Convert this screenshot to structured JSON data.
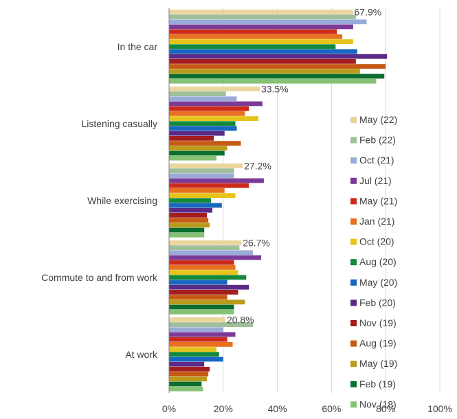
{
  "chart_data": {
    "type": "bar",
    "orientation": "horizontal",
    "categories": [
      "In the car",
      "Listening casually",
      "While exercising",
      "Commute to and from work",
      "At work"
    ],
    "data_labels": [
      "67.9%",
      "33.5%",
      "27.2%",
      "26.7%",
      "20.8%"
    ],
    "xlim": [
      0,
      100
    ],
    "x_ticks": [
      "0%",
      "20%",
      "40%",
      "60%",
      "80%",
      "100%"
    ],
    "grid": true,
    "legend_placement": "right",
    "series": [
      {
        "name": "May (22)",
        "color": "#ead59c",
        "values": [
          67.9,
          33.5,
          27.2,
          26.7,
          20.8
        ]
      },
      {
        "name": "Feb (22)",
        "color": "#9fc09a",
        "values": [
          69,
          21,
          24,
          26,
          31
        ]
      },
      {
        "name": "Oct (21)",
        "color": "#9aabd8",
        "values": [
          73,
          25,
          24,
          31,
          20
        ]
      },
      {
        "name": "Jul (21)",
        "color": "#7a3a96",
        "values": [
          68,
          34.5,
          35,
          34,
          24.5
        ]
      },
      {
        "name": "May (21)",
        "color": "#cc2a1a",
        "values": [
          62,
          29.5,
          29.5,
          24,
          21.5
        ]
      },
      {
        "name": "Jan (21)",
        "color": "#e7711f",
        "values": [
          64,
          28,
          20.5,
          24.5,
          23.5
        ]
      },
      {
        "name": "Oct (20)",
        "color": "#e5c31a",
        "values": [
          68,
          33,
          24.5,
          25.5,
          17.5
        ]
      },
      {
        "name": "Aug (20)",
        "color": "#12893a",
        "values": [
          61.5,
          24.5,
          15.5,
          28.5,
          18.5
        ]
      },
      {
        "name": "May (20)",
        "color": "#1766c0",
        "values": [
          69.5,
          25,
          19.5,
          21.5,
          20
        ]
      },
      {
        "name": "Feb (20)",
        "color": "#5a2a86",
        "values": [
          80.5,
          20.5,
          16,
          29.5,
          13
        ]
      },
      {
        "name": "Nov (19)",
        "color": "#a51e1e",
        "values": [
          69,
          16.5,
          14,
          25.5,
          15
        ]
      },
      {
        "name": "Aug (19)",
        "color": "#c55a14",
        "values": [
          80,
          26.5,
          14.5,
          21.5,
          14.5
        ]
      },
      {
        "name": "May (19)",
        "color": "#b99a1a",
        "values": [
          70.5,
          21.5,
          15,
          28,
          14
        ]
      },
      {
        "name": "Feb (19)",
        "color": "#0c6e2e",
        "values": [
          79.5,
          20.5,
          13,
          24,
          12
        ]
      },
      {
        "name": "Nov (18)",
        "color": "#86c174",
        "values": [
          76.5,
          17.5,
          13,
          24,
          12.5
        ]
      }
    ]
  }
}
